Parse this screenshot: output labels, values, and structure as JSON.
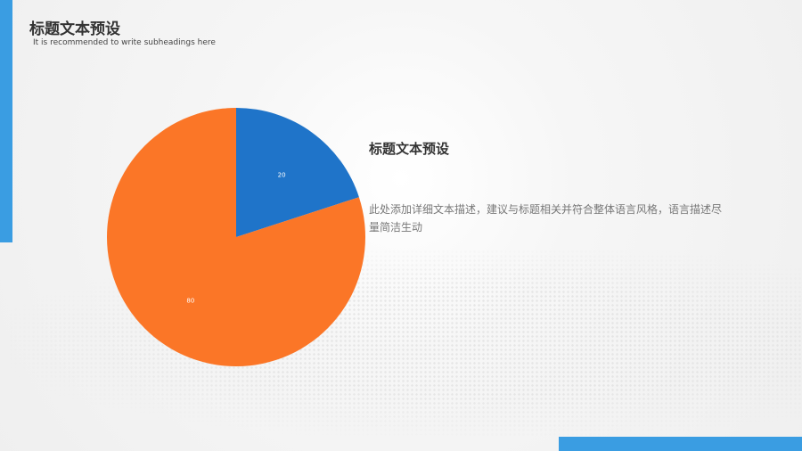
{
  "header": {
    "title": "标题文本预设",
    "subtitle": "It is recommended to write subheadings here"
  },
  "content": {
    "heading": "标题文本预设",
    "description": "此处添加详细文本描述，建议与标题相关并符合整体语言风格，语言描述尽量简洁生动"
  },
  "colors": {
    "accent": "#3a9de2",
    "slice_blue": "#1f74c9",
    "slice_orange": "#fb7627"
  },
  "chart_data": {
    "type": "pie",
    "values": [
      20,
      80
    ],
    "labels": [
      "20",
      "80"
    ],
    "colors": [
      "#1f74c9",
      "#fb7627"
    ],
    "start": "top",
    "direction": "clockwise"
  }
}
